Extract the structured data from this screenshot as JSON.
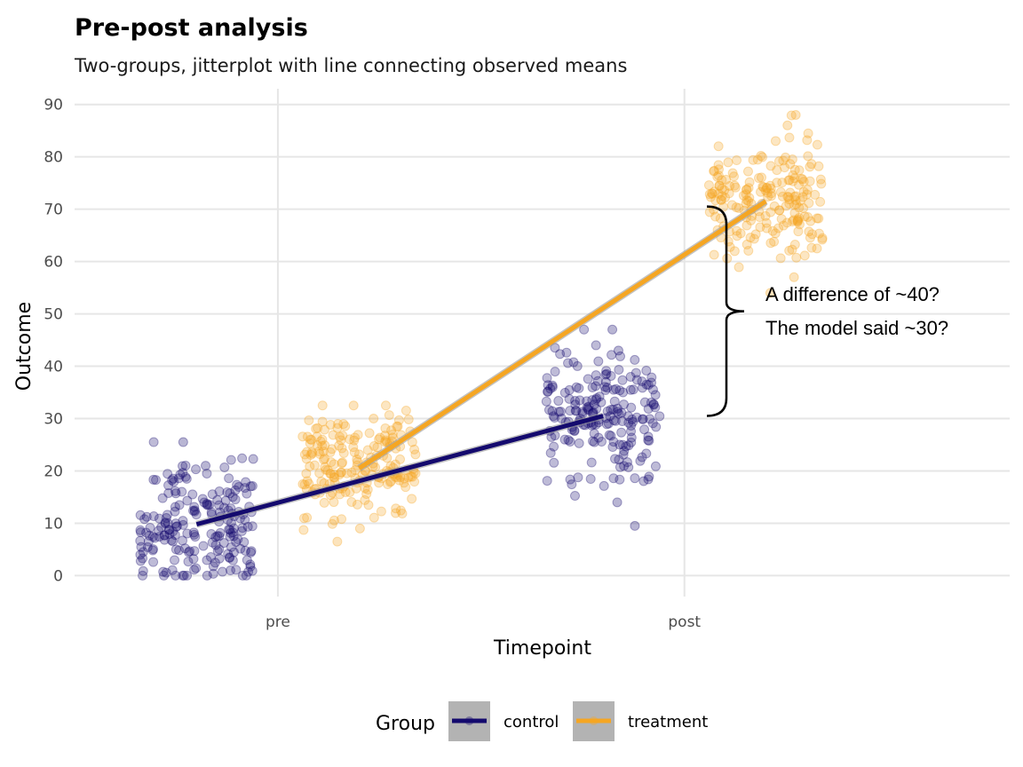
{
  "chart_data": {
    "type": "scatter",
    "title": "Pre-post analysis",
    "subtitle": "Two-groups, jitterplot with line connecting observed means",
    "xlabel": "Timepoint",
    "ylabel": "Outcome",
    "categories": [
      "pre",
      "post"
    ],
    "ylim": [
      -4,
      93
    ],
    "y_ticks": [
      0,
      10,
      20,
      30,
      40,
      50,
      60,
      70,
      80,
      90
    ],
    "grid": true,
    "legend": {
      "title": "Group",
      "placement": "bottom"
    },
    "series": [
      {
        "name": "control",
        "color": "#140a6e",
        "offset": -0.2,
        "spread": 0.14,
        "n": 200,
        "sd": 5.8,
        "range": [
          0,
          25.5
        ],
        "means": [
          9.8,
          30.5
        ],
        "extremes": [
          [
            0,
            25.5,
            21,
            1
          ],
          [
            9.5,
            47,
            14,
            43
          ]
        ]
      },
      {
        "name": "treatment",
        "color": "#f5a623",
        "offset": 0.2,
        "spread": 0.14,
        "n": 200,
        "sd": 5.2,
        "range": [
          6.5,
          32.5
        ],
        "means": [
          20.5,
          71.5
        ],
        "extremes": [
          [
            6.5,
            32.5,
            9,
            30
          ],
          [
            54,
            88,
            57,
            86
          ]
        ]
      }
    ],
    "annotation": {
      "lines": [
        "A difference of ~40?",
        "The model said ~30?"
      ],
      "bracket_range": [
        30.5,
        70.5
      ]
    }
  }
}
